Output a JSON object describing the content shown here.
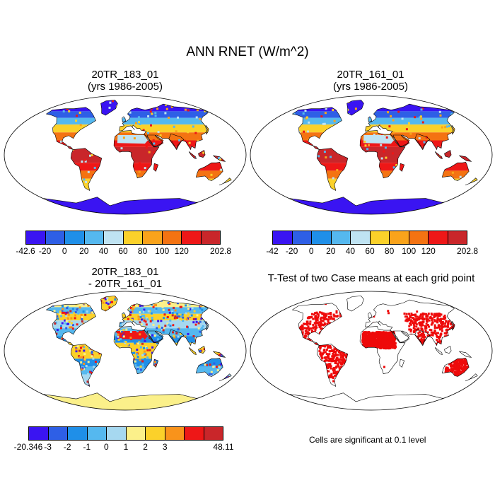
{
  "figure": {
    "title": "ANN RNET (W/m^2)"
  },
  "panels": [
    {
      "id": "top-left",
      "title_line1": "20TR_183_01",
      "title_line2": "(yrs 1986-2005)",
      "colorbar": {
        "labels": [
          "-42.6",
          "-20",
          "0",
          "20",
          "40",
          "60",
          "80",
          "100",
          "120",
          "202.8"
        ],
        "colors": [
          "#3a14f2",
          "#2e5fe6",
          "#1f8fe8",
          "#55b8ef",
          "#bfe3f2",
          "#fbd12a",
          "#f9a31b",
          "#f47312",
          "#ee1717",
          "#c9262a"
        ]
      }
    },
    {
      "id": "top-right",
      "title_line1": "20TR_161_01",
      "title_line2": "(yrs 1986-2005)",
      "colorbar": {
        "labels": [
          "-42",
          "-20",
          "0",
          "20",
          "40",
          "60",
          "80",
          "100",
          "120",
          "202.8"
        ],
        "colors": [
          "#3a14f2",
          "#2e5fe6",
          "#1f8fe8",
          "#55b8ef",
          "#bfe3f2",
          "#fbd12a",
          "#f9a31b",
          "#f47312",
          "#ee1717",
          "#c9262a"
        ]
      }
    },
    {
      "id": "bottom-left",
      "title_line1": "20TR_183_01",
      "title_line2": "- 20TR_161_01",
      "colorbar": {
        "labels": [
          "-20.346",
          "-3",
          "-2",
          "-1",
          "0",
          "1",
          "2",
          "3",
          "48.11"
        ],
        "colors": [
          "#3a14f2",
          "#2e5fe6",
          "#1f8fe8",
          "#55b8ef",
          "#a6d8f0",
          "#fbf08a",
          "#fbd12a",
          "#f9931b",
          "#ee1717",
          "#c9262a"
        ]
      }
    },
    {
      "id": "bottom-right",
      "title_line1": "T-Test of two Case means at each grid point",
      "note": "Cells are significant at 0.1 level",
      "sig_color": "#ee0a0a"
    }
  ]
}
